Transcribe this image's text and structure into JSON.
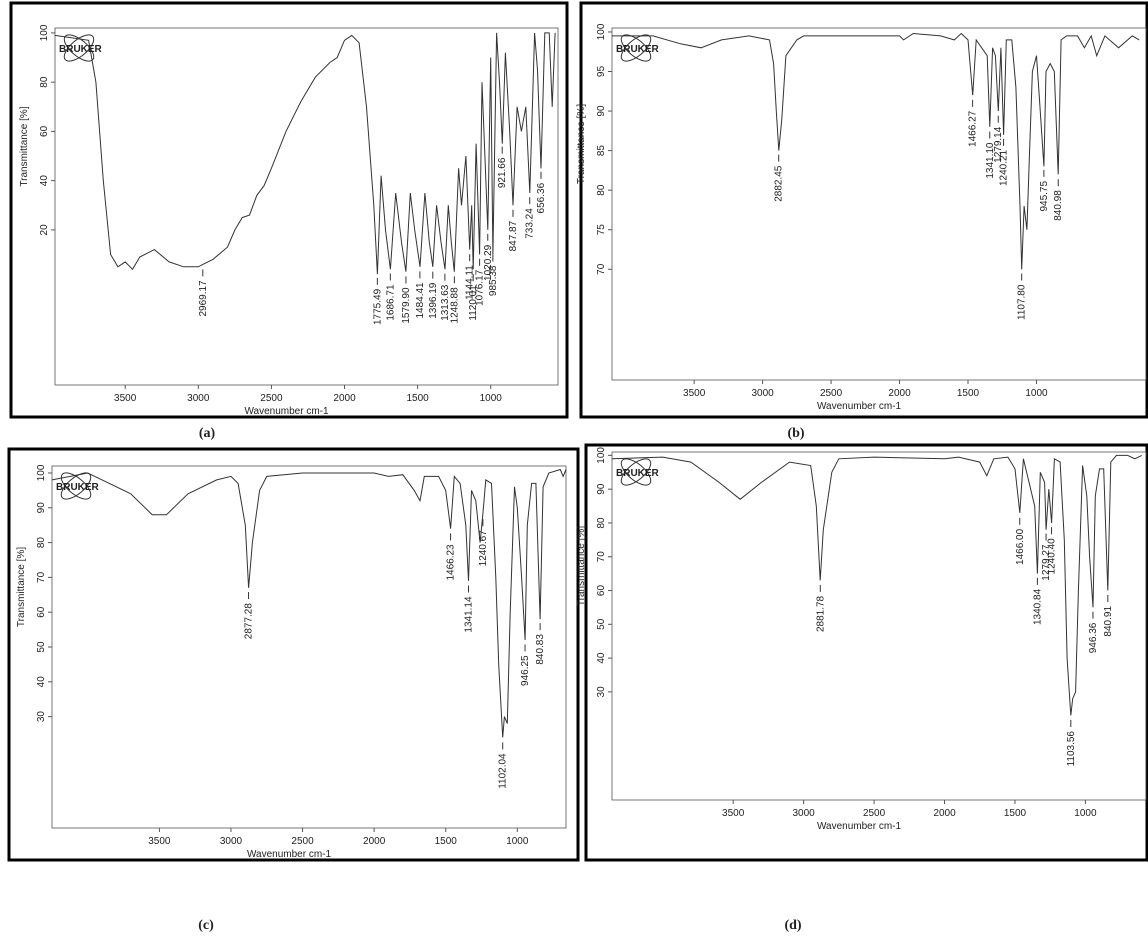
{
  "chart_data": [
    {
      "type": "line",
      "logo": "BRUKER",
      "caption": "(a)",
      "xlabel": "Wavenumber cm-1",
      "ylabel": "Transmittance [%]",
      "color": "#333333",
      "xlim": [
        3980,
        540
      ],
      "ylim": [
        -43,
        102
      ],
      "xticks": [
        3500,
        3000,
        2500,
        2000,
        1500,
        1000
      ],
      "yticks": [
        20,
        40,
        60,
        80,
        100
      ],
      "x": [
        3980,
        3750,
        3700,
        3650,
        3600,
        3550,
        3500,
        3450,
        3400,
        3300,
        3200,
        3100,
        3000,
        2969,
        2900,
        2800,
        2750,
        2700,
        2650,
        2600,
        2550,
        2500,
        2400,
        2300,
        2200,
        2100,
        2050,
        2000,
        1950,
        1900,
        1850,
        1800,
        1775,
        1750,
        1720,
        1686,
        1650,
        1610,
        1580,
        1550,
        1520,
        1484,
        1450,
        1420,
        1396,
        1370,
        1340,
        1313,
        1290,
        1270,
        1249,
        1220,
        1200,
        1170,
        1144,
        1130,
        1120,
        1100,
        1076,
        1060,
        1040,
        1020,
        1000,
        985,
        960,
        940,
        921,
        900,
        870,
        848,
        820,
        790,
        760,
        733,
        700,
        680,
        656,
        630,
        600,
        580,
        560
      ],
      "values": [
        99,
        97,
        80,
        40,
        10,
        5,
        7,
        4,
        9,
        12,
        7,
        5,
        5,
        6,
        8,
        13,
        20,
        25,
        26,
        34,
        38,
        45,
        60,
        72,
        82,
        88,
        90,
        97,
        99,
        96,
        70,
        30,
        2,
        42,
        20,
        4,
        35,
        15,
        3,
        35,
        20,
        5,
        35,
        15,
        5,
        30,
        15,
        4,
        30,
        15,
        3,
        45,
        30,
        50,
        12,
        30,
        4,
        55,
        10,
        80,
        50,
        20,
        90,
        10,
        100,
        80,
        55,
        92,
        60,
        30,
        70,
        60,
        70,
        35,
        100,
        85,
        45,
        100,
        100,
        70,
        100
      ],
      "peaks": [
        {
          "value": 2969.17,
          "label": "2969.17"
        },
        {
          "value": 1775.49,
          "label": "1775.49"
        },
        {
          "value": 1686.71,
          "label": "1686.71"
        },
        {
          "value": 1579.9,
          "label": "1579.90"
        },
        {
          "value": 1484.41,
          "label": "1484.41"
        },
        {
          "value": 1396.19,
          "label": "1396.19"
        },
        {
          "value": 1313.63,
          "label": "1313.63"
        },
        {
          "value": 1248.88,
          "label": "1248.88"
        },
        {
          "value": 1144.11,
          "label": "1144.11"
        },
        {
          "value": 1120.01,
          "label": "1120.01"
        },
        {
          "value": 1076.17,
          "label": "1076.17"
        },
        {
          "value": 1020.29,
          "label": "1020.29"
        },
        {
          "value": 985.38,
          "label": "985.38"
        },
        {
          "value": 921.66,
          "label": "921.66"
        },
        {
          "value": 847.87,
          "label": "847.87"
        },
        {
          "value": 733.24,
          "label": "733.24"
        },
        {
          "value": 656.36,
          "label": "656.36"
        }
      ]
    },
    {
      "type": "line",
      "logo": "BRUKER",
      "caption": "(b)",
      "xlabel": "Wavenumber cm-1",
      "ylabel": "Transmittance [%]",
      "color": "#333333",
      "xlim": [
        4100,
        200
      ],
      "ylim": [
        56,
        100.5
      ],
      "xticks": [
        3500,
        3000,
        2500,
        2000,
        1500,
        1000
      ],
      "yticks": [
        70,
        75,
        80,
        85,
        90,
        95,
        100
      ],
      "x": [
        4100,
        3800,
        3600,
        3450,
        3300,
        3100,
        2950,
        2920,
        2900,
        2882,
        2860,
        2830,
        2750,
        2700,
        2000,
        1970,
        1900,
        1700,
        1600,
        1550,
        1500,
        1466,
        1440,
        1400,
        1360,
        1341,
        1320,
        1300,
        1279,
        1260,
        1240,
        1220,
        1180,
        1150,
        1120,
        1108,
        1090,
        1070,
        1050,
        1030,
        1000,
        980,
        946,
        930,
        900,
        870,
        841,
        820,
        780,
        700,
        650,
        600,
        560,
        500,
        400,
        300,
        250
      ],
      "values": [
        99.5,
        99.5,
        98.5,
        98,
        99,
        99.5,
        99,
        96,
        90,
        85,
        89,
        97,
        99,
        99.5,
        99.5,
        99,
        99.8,
        99.5,
        99,
        99.8,
        99,
        92,
        99,
        98,
        97,
        88,
        98,
        97,
        90,
        98,
        87,
        99,
        99,
        93,
        78,
        70,
        78,
        75,
        85,
        95,
        97,
        92,
        83,
        95,
        96,
        95,
        82,
        99,
        99.5,
        99.5,
        98,
        99.5,
        97,
        99.5,
        98,
        99.5,
        99
      ],
      "peaks": [
        {
          "value": 2882.45,
          "label": "2882.45"
        },
        {
          "value": 1466.27,
          "label": "1466.27"
        },
        {
          "value": 1341.1,
          "label": "1341.10"
        },
        {
          "value": 1279.14,
          "label": "1279.14"
        },
        {
          "value": 1240.21,
          "label": "1240.21"
        },
        {
          "value": 1107.8,
          "label": "1107.80"
        },
        {
          "value": 945.75,
          "label": "945.75"
        },
        {
          "value": 840.98,
          "label": "840.98"
        }
      ]
    },
    {
      "type": "line",
      "logo": "BRUKER",
      "caption": "(c)",
      "xlabel": "Wavenumber cm-1",
      "ylabel": "Transmittance [%]",
      "color": "#333333",
      "xlim": [
        4250,
        660
      ],
      "ylim": [
        -2,
        102
      ],
      "xticks": [
        3500,
        3000,
        2500,
        2000,
        1500,
        1000
      ],
      "yticks": [
        30,
        40,
        50,
        60,
        70,
        80,
        90,
        100
      ],
      "x": [
        4250,
        4000,
        3900,
        3700,
        3550,
        3450,
        3300,
        3100,
        3000,
        2950,
        2900,
        2877,
        2850,
        2800,
        2750,
        2500,
        2000,
        1900,
        1800,
        1720,
        1680,
        1650,
        1550,
        1500,
        1466,
        1440,
        1400,
        1360,
        1341,
        1320,
        1290,
        1260,
        1241,
        1220,
        1180,
        1150,
        1130,
        1102,
        1090,
        1070,
        1050,
        1020,
        1000,
        970,
        946,
        930,
        900,
        870,
        841,
        820,
        780,
        700,
        680,
        660
      ],
      "values": [
        98,
        100,
        98,
        94,
        88,
        88,
        94,
        98,
        99,
        97,
        85,
        67,
        80,
        95,
        99,
        100,
        100,
        99,
        99.5,
        95,
        92,
        99,
        99,
        95,
        84,
        99,
        97,
        85,
        69,
        95,
        92,
        80,
        88,
        98,
        97,
        70,
        45,
        24,
        30,
        28,
        60,
        96,
        90,
        70,
        52,
        85,
        97,
        97,
        58,
        96,
        100,
        101,
        99,
        101
      ],
      "peaks": [
        {
          "value": 2877.28,
          "label": "2877.28"
        },
        {
          "value": 1466.23,
          "label": "1466.23"
        },
        {
          "value": 1341.14,
          "label": "1341.14"
        },
        {
          "value": 1240.67,
          "label": "1240.67"
        },
        {
          "value": 1102.04,
          "label": "1102.04"
        },
        {
          "value": 946.25,
          "label": "946.25"
        },
        {
          "value": 840.83,
          "label": "840.83"
        }
      ]
    },
    {
      "type": "line",
      "logo": "BRUKER",
      "caption": "(d)",
      "xlabel": "Wavenumber cm-1",
      "ylabel": "Transmittance [%]",
      "color": "#333333",
      "xlim": [
        4360,
        570
      ],
      "ylim": [
        -2,
        101
      ],
      "xticks": [
        3500,
        3000,
        2500,
        2000,
        1500,
        1000
      ],
      "yticks": [
        30,
        40,
        50,
        60,
        70,
        80,
        90,
        100
      ],
      "x": [
        4360,
        4000,
        3800,
        3600,
        3450,
        3300,
        3100,
        2950,
        2910,
        2882,
        2860,
        2800,
        2750,
        2500,
        2000,
        1900,
        1750,
        1700,
        1650,
        1550,
        1500,
        1466,
        1440,
        1360,
        1341,
        1320,
        1290,
        1279,
        1260,
        1240,
        1220,
        1180,
        1150,
        1130,
        1104,
        1090,
        1070,
        1050,
        1020,
        990,
        970,
        946,
        930,
        900,
        870,
        841,
        820,
        780,
        700,
        650,
        600
      ],
      "values": [
        99,
        99.5,
        98,
        92,
        87,
        92,
        98,
        97,
        85,
        63,
        78,
        95,
        99,
        99.5,
        99,
        99.5,
        98,
        94,
        99,
        99.5,
        96,
        83,
        99,
        85,
        65,
        95,
        92,
        78,
        90,
        80,
        99,
        98,
        75,
        40,
        23,
        28,
        30,
        60,
        97,
        88,
        70,
        55,
        88,
        96,
        96,
        60,
        98,
        100,
        100,
        99,
        100
      ],
      "peaks": [
        {
          "value": 2881.78,
          "label": "2881.78"
        },
        {
          "value": 1466.0,
          "label": "1466.00"
        },
        {
          "value": 1340.84,
          "label": "1340.84"
        },
        {
          "value": 1279.27,
          "label": "1279.27"
        },
        {
          "value": 1240.4,
          "label": "1240.40"
        },
        {
          "value": 1103.56,
          "label": "1103.56"
        },
        {
          "value": 946.36,
          "label": "946.36"
        },
        {
          "value": 840.91,
          "label": "840.91"
        }
      ]
    }
  ]
}
